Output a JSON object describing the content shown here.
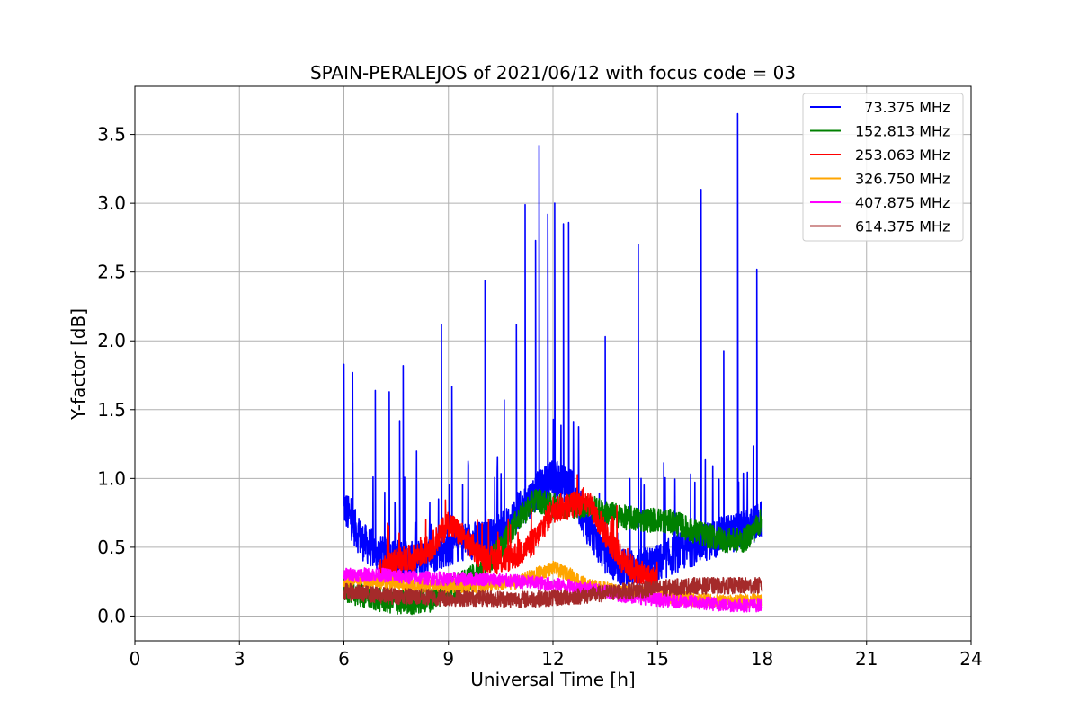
{
  "chart_data": {
    "type": "line",
    "title": "SPAIN-PERALEJOS of 2021/06/12 with focus code = 03",
    "xlabel": "Universal Time [h]",
    "ylabel": "Y-factor [dB]",
    "xlim": [
      0,
      24
    ],
    "ylim": [
      -0.18,
      3.85
    ],
    "xticks": [
      0,
      3,
      6,
      9,
      12,
      15,
      18,
      21,
      24
    ],
    "xtick_labels": [
      "0",
      "3",
      "6",
      "9",
      "12",
      "15",
      "18",
      "21",
      "24"
    ],
    "yticks": [
      0.0,
      0.5,
      1.0,
      1.5,
      2.0,
      2.5,
      3.0,
      3.5
    ],
    "ytick_labels": [
      "0.0",
      "0.5",
      "1.0",
      "1.5",
      "2.0",
      "2.5",
      "3.0",
      "3.5"
    ],
    "grid": true,
    "legend_position": "top-right",
    "series": [
      {
        "name": "73.375 MHz",
        "legend_label": "  73.375 MHz",
        "color": "#0000ff",
        "x": [
          6.0,
          6.5,
          7.0,
          7.5,
          8.0,
          8.5,
          9.0,
          9.5,
          10.0,
          10.5,
          11.0,
          11.5,
          12.0,
          12.5,
          13.0,
          13.5,
          14.0,
          14.5,
          15.0,
          15.5,
          16.0,
          16.5,
          17.0,
          17.5,
          18.0
        ],
        "y": [
          0.8,
          0.55,
          0.45,
          0.42,
          0.4,
          0.45,
          0.5,
          0.55,
          0.55,
          0.6,
          0.75,
          0.9,
          1.0,
          0.95,
          0.65,
          0.45,
          0.35,
          0.35,
          0.38,
          0.45,
          0.5,
          0.55,
          0.6,
          0.62,
          0.7
        ],
        "spikes": [
          [
            6.0,
            1.83
          ],
          [
            6.25,
            1.77
          ],
          [
            6.9,
            1.64
          ],
          [
            7.3,
            1.63
          ],
          [
            7.6,
            1.42
          ],
          [
            7.7,
            1.82
          ],
          [
            8.8,
            2.12
          ],
          [
            9.1,
            1.67
          ],
          [
            10.05,
            2.44
          ],
          [
            10.6,
            1.57
          ],
          [
            10.95,
            2.12
          ],
          [
            11.2,
            2.99
          ],
          [
            11.5,
            2.73
          ],
          [
            11.6,
            3.42
          ],
          [
            11.85,
            2.92
          ],
          [
            12.05,
            3.0
          ],
          [
            12.3,
            2.85
          ],
          [
            12.45,
            2.86
          ],
          [
            13.5,
            2.03
          ],
          [
            14.45,
            2.7
          ],
          [
            16.25,
            3.1
          ],
          [
            16.9,
            1.93
          ],
          [
            17.3,
            3.65
          ],
          [
            17.85,
            2.52
          ]
        ]
      },
      {
        "name": "152.813 MHz",
        "legend_label": "152.813 MHz",
        "color": "#008000",
        "x": [
          6.0,
          6.5,
          7.0,
          7.5,
          8.0,
          8.5,
          9.0,
          9.5,
          10.0,
          10.5,
          11.0,
          11.5,
          12.0,
          12.5,
          13.0,
          13.5,
          14.0,
          14.5,
          15.0,
          15.5,
          16.0,
          16.5,
          17.0,
          17.5,
          18.0
        ],
        "y": [
          0.2,
          0.15,
          0.12,
          0.1,
          0.1,
          0.12,
          0.2,
          0.25,
          0.35,
          0.5,
          0.7,
          0.85,
          0.8,
          0.8,
          0.8,
          0.75,
          0.72,
          0.7,
          0.7,
          0.68,
          0.62,
          0.58,
          0.55,
          0.55,
          0.7
        ]
      },
      {
        "name": "253.063 MHz",
        "legend_label": "253.063 MHz",
        "color": "#ff0000",
        "x": [
          7.0,
          7.5,
          8.0,
          8.5,
          9.0,
          9.5,
          10.0,
          10.5,
          11.0,
          11.5,
          12.0,
          12.5,
          13.0,
          13.5,
          14.0,
          14.5,
          15.0
        ],
        "y": [
          0.32,
          0.4,
          0.42,
          0.5,
          0.68,
          0.55,
          0.42,
          0.4,
          0.45,
          0.55,
          0.78,
          0.8,
          0.85,
          0.6,
          0.4,
          0.3,
          0.25
        ]
      },
      {
        "name": "326.750 MHz",
        "legend_label": "326.750 MHz",
        "color": "#ffa500",
        "x": [
          6.0,
          7.0,
          8.0,
          9.0,
          10.0,
          11.0,
          11.5,
          12.0,
          12.5,
          13.0,
          14.0,
          15.0,
          16.0,
          17.0,
          18.0
        ],
        "y": [
          0.25,
          0.25,
          0.22,
          0.22,
          0.22,
          0.25,
          0.3,
          0.35,
          0.3,
          0.22,
          0.18,
          0.15,
          0.12,
          0.1,
          0.12
        ]
      },
      {
        "name": "407.875 MHz",
        "legend_label": "407.875 MHz",
        "color": "#ff00ff",
        "x": [
          6.0,
          7.0,
          8.0,
          9.0,
          10.0,
          11.0,
          12.0,
          13.0,
          14.0,
          15.0,
          16.0,
          17.0,
          18.0
        ],
        "y": [
          0.3,
          0.3,
          0.28,
          0.27,
          0.27,
          0.25,
          0.23,
          0.2,
          0.15,
          0.12,
          0.1,
          0.08,
          0.08
        ]
      },
      {
        "name": "614.375 MHz",
        "legend_label": "614.375 MHz",
        "color": "#a52a2a",
        "x": [
          6.0,
          7.0,
          8.0,
          9.0,
          10.0,
          11.0,
          12.0,
          13.0,
          14.0,
          15.0,
          16.0,
          17.0,
          18.0
        ],
        "y": [
          0.18,
          0.15,
          0.14,
          0.13,
          0.13,
          0.12,
          0.13,
          0.15,
          0.18,
          0.2,
          0.22,
          0.22,
          0.22
        ]
      }
    ]
  }
}
